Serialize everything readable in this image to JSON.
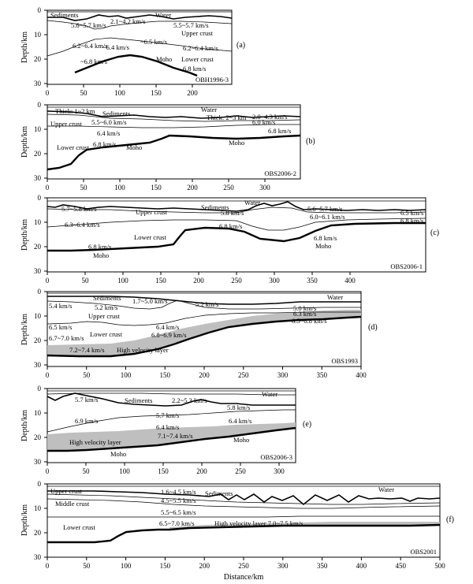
{
  "figure": {
    "xlabel": "Distance/km",
    "ylabel": "Depth/km",
    "panels": [
      {
        "id": "a",
        "letter": "(a)",
        "name": "OBH1996-3",
        "xticks": [
          "0",
          "50",
          "100",
          "150",
          "200"
        ],
        "yticks": [
          "0",
          "10",
          "20",
          "30"
        ],
        "labels": [
          "Sediments",
          "Water",
          "5.6~5.7 km/s",
          "2.1~4.2 km/s",
          "5.5~5.7 km/s",
          "Upper crust",
          "6.2~6.4 km/s",
          "~6.4 km/s",
          "~6.5 km/s",
          "6.2~6.4 km/s",
          "~6.8 km/s",
          "Moho",
          "Lower crust",
          "6.8 km/s"
        ]
      },
      {
        "id": "b",
        "letter": "(b)",
        "name": "OBS2006-2",
        "xticks": [
          "0",
          "50",
          "100",
          "150",
          "200",
          "250",
          "300",
          "350"
        ],
        "yticks": [
          "0",
          "10",
          "20",
          "30"
        ],
        "labels": [
          "Thick: 1~2 km",
          "Sediments",
          "Water",
          "Thick: 2~3 km",
          "2.0~4.3 km/s",
          "Upper crust",
          "5.5~6.0 km/s",
          "6.0 km/s",
          "6.4 km/s",
          "6.8 km/s",
          "Lower crust",
          "6.8 km/s",
          "Moho",
          "Moho"
        ]
      },
      {
        "id": "c",
        "letter": "(c)",
        "name": "OBS2006-1",
        "xticks": [
          "0",
          "50",
          "100",
          "150",
          "200",
          "250",
          "300",
          "350",
          "400",
          "450"
        ],
        "yticks": [
          "0",
          "10",
          "20",
          "30"
        ],
        "labels": [
          "Water",
          "5.7~5.8 km/s",
          "Upper crust",
          "Sediments",
          "5.6~5.7 km/s",
          "5.8 km/s",
          "6.0~6.1 km/s",
          "6.5 km/s",
          "6.3~6.4 km/s",
          "6.8 km/s",
          "6.8 km/s",
          "Lower crust",
          "6.8 km/s",
          "Moho",
          "6.8 km/s",
          "Moho"
        ]
      },
      {
        "id": "d",
        "letter": "(d)",
        "name": "OBS1993",
        "xticks": [
          "0",
          "50",
          "100",
          "150",
          "200",
          "250",
          "300",
          "350",
          "400"
        ],
        "yticks": [
          "0",
          "10",
          "20",
          "30"
        ],
        "labels": [
          "Sediments",
          "Water",
          "5.4 km/s",
          "1.7~5.0 km/s",
          "5.2 km/s",
          "5.2 km/s",
          "5.0 km/s",
          "Upper crust",
          "6.3 km/s",
          "6.5 km/s",
          "6.4 km/s",
          "6.5~6.8 km/s",
          "Lower crust",
          "6.7~7.0 km/s",
          "6.8~6.9 km/s",
          "7.2~7.4 km/s",
          "High velocity layer"
        ]
      },
      {
        "id": "e",
        "letter": "(e)",
        "name": "OBS2006-3",
        "xticks": [
          "0",
          "50",
          "100",
          "150",
          "200",
          "250",
          "300"
        ],
        "yticks": [
          "0",
          "10",
          "20",
          "30"
        ],
        "labels": [
          "Water",
          "5.7 km/s",
          "Sediments",
          "2.2~5.3 km/s",
          "5.8 km/s",
          "5.7 km/s",
          "6.9 km/s",
          "6.4 km/s",
          "6.4 km/s",
          "High velocity layer",
          "7.1~7.4 km/s",
          "Moho",
          "Moho"
        ]
      },
      {
        "id": "f",
        "letter": "(f)",
        "name": "OBS2001",
        "xticks": [
          "0",
          "50",
          "100",
          "150",
          "200",
          "250",
          "300",
          "350",
          "400",
          "450",
          "500"
        ],
        "yticks": [
          "0",
          "10",
          "20",
          "30"
        ],
        "labels": [
          "Upper crust",
          "1.6~4.5 km/s",
          "Sediments",
          "Water",
          "Middle crust",
          "4.5~5.5 km/s",
          "5.5~6.5 km/s",
          "Lower crust",
          "6.5~7.0 km/s",
          "High velocity layer 7.0~7.5 km/s"
        ]
      }
    ]
  },
  "colors": {
    "ink": "#000000",
    "fill": "#bfbfbf",
    "background": "#ffffff"
  }
}
